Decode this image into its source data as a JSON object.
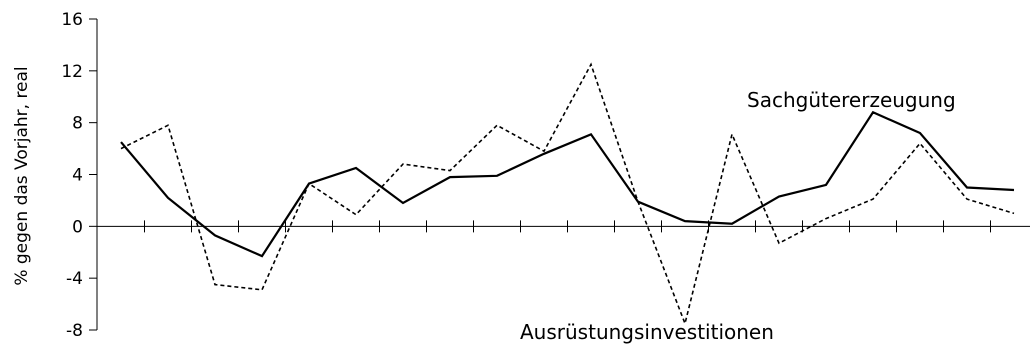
{
  "chart_data": {
    "type": "line",
    "ylabel": "% gegen das Vorjahr, real",
    "ylim": [
      -8,
      16
    ],
    "yticks": [
      -8,
      -4,
      0,
      4,
      8,
      12,
      16
    ],
    "ytick_labels": [
      "-8",
      "-4",
      "0",
      "4",
      "8",
      "12",
      "16"
    ],
    "x_tick_count": 20,
    "grid": false,
    "series": [
      {
        "name": "Sachgütererzeugung",
        "style": "solid",
        "color": "#000000",
        "values": [
          6.5,
          2.2,
          -0.7,
          -2.3,
          3.3,
          4.5,
          1.8,
          3.8,
          3.9,
          5.6,
          7.1,
          1.9,
          0.4,
          0.2,
          2.3,
          3.2,
          8.8,
          7.2,
          3.0,
          2.8
        ]
      },
      {
        "name": "Ausrüstungsinvestitionen",
        "style": "dashed",
        "color": "#000000",
        "values": [
          6.0,
          7.8,
          -4.5,
          -4.9,
          3.3,
          0.9,
          4.8,
          4.3,
          7.8,
          5.8,
          12.5,
          1.9,
          -7.5,
          7.1,
          -1.3,
          0.6,
          2.1,
          6.4,
          2.1,
          1.0
        ]
      }
    ]
  }
}
